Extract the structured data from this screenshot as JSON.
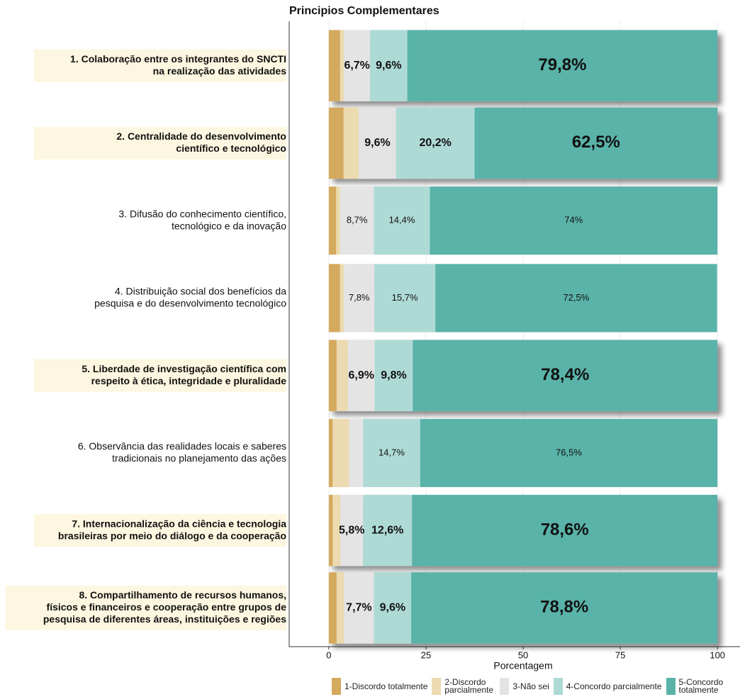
{
  "chart_data": {
    "type": "stacked-barh",
    "title": "Principios Complementares",
    "xlabel": "Porcentagem",
    "categories": [
      [
        "1. Colaboração entre os integrantes do SNCTI",
        "na realização das atividades"
      ],
      [
        "2. Centralidade do desenvolvimento",
        "científico e tecnológico"
      ],
      [
        "3. Difusão do conhecimento científico,",
        "tecnológico e da inovação"
      ],
      [
        "4. Distribuição social dos benefícios da",
        "pesquisa e do desenvolvimento tecnológico"
      ],
      [
        "5. Liberdade de investigação científica com",
        "respeito à ética, integridade e pluralidade"
      ],
      [
        "6. Observância das realidades locais e saberes",
        "tradicionais no planejamento das ações"
      ],
      [
        "7. Internacionalização da ciência e tecnologia",
        "brasileiras por meio do diálogo e da cooperação"
      ],
      [
        "8. Compartilhamento de recursos humanos,",
        "físicos e financeiros e cooperação entre grupos de",
        "pesquisa de diferentes áreas, instituições e regiões"
      ]
    ],
    "highlighted": [
      true,
      true,
      false,
      false,
      true,
      false,
      true,
      true
    ],
    "series": [
      {
        "name": "1-Discordo totalmente",
        "color": "#d4aa5e",
        "values": [
          2.9,
          3.8,
          1.9,
          2.9,
          2.0,
          1.0,
          1.0,
          2.0
        ],
        "value_labels": [
          null,
          null,
          null,
          null,
          null,
          null,
          null,
          null
        ]
      },
      {
        "name": "2-Discordo parcialmente",
        "color": "#ecdab0",
        "values": [
          1.0,
          3.9,
          1.0,
          1.0,
          2.9,
          4.2,
          2.0,
          1.9
        ],
        "value_labels": [
          null,
          null,
          null,
          null,
          null,
          null,
          null,
          null
        ]
      },
      {
        "name": "3-Não sei",
        "color": "#e4e4e4",
        "values": [
          6.7,
          9.6,
          8.7,
          7.8,
          6.9,
          3.6,
          5.8,
          7.7
        ],
        "value_labels": [
          "6,7%",
          "9,6%",
          "8,7%",
          "7,8%",
          "6,9%",
          null,
          "5,8%",
          "7,7%"
        ]
      },
      {
        "name": "4-Concordo parcialmente",
        "color": "#aedad6",
        "values": [
          9.6,
          20.2,
          14.4,
          15.7,
          9.8,
          14.7,
          12.6,
          9.6
        ],
        "value_labels": [
          "9,6%",
          "20,2%",
          "14,4%",
          "15,7%",
          "9,8%",
          "14,7%",
          "12,6%",
          "9,6%"
        ]
      },
      {
        "name": "5-Concordo totalmente",
        "color": "#5ab3a9",
        "values": [
          79.8,
          62.5,
          74,
          72.5,
          78.4,
          76.5,
          78.6,
          78.8
        ],
        "value_labels": [
          "79,8%",
          "62,5%",
          "74%",
          "72,5%",
          "78,4%",
          "76,5%",
          "78,6%",
          "78,8%"
        ]
      }
    ],
    "xlim": [
      -10.2,
      105.8
    ],
    "xticks": [
      0,
      25,
      50,
      75,
      100
    ],
    "grid": true,
    "legend": "bottom"
  }
}
